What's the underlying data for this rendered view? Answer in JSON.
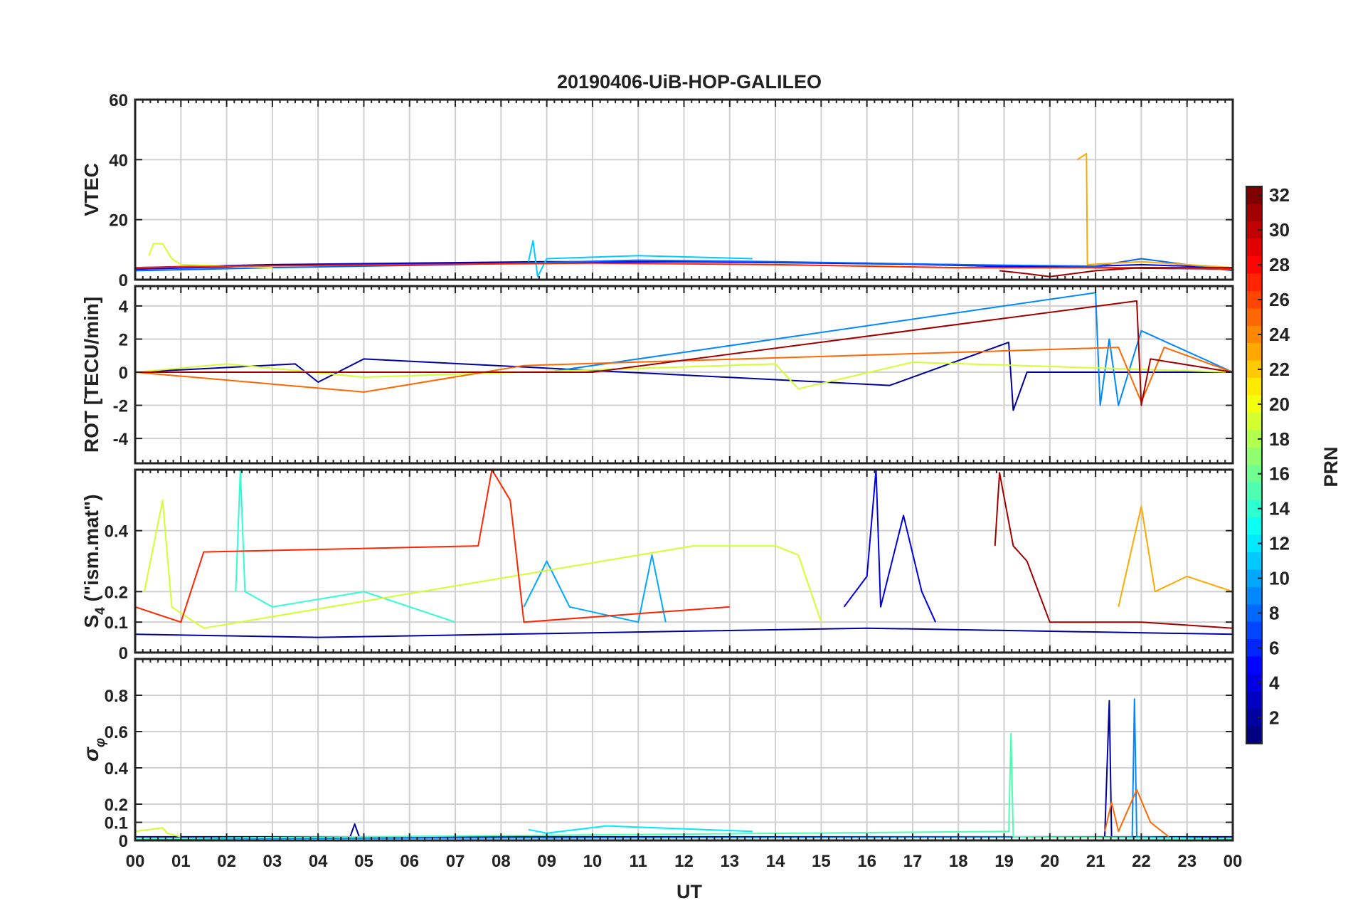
{
  "title": "20190406-UiB-HOP-GALILEO",
  "xlabel": "UT",
  "x_ticks": [
    "00",
    "01",
    "02",
    "03",
    "04",
    "05",
    "06",
    "07",
    "08",
    "09",
    "10",
    "11",
    "12",
    "13",
    "14",
    "15",
    "16",
    "17",
    "18",
    "19",
    "20",
    "21",
    "22",
    "23",
    "00"
  ],
  "colorbar": {
    "label": "PRN",
    "range": [
      1,
      32
    ],
    "ticks": [
      2,
      4,
      6,
      8,
      10,
      12,
      14,
      16,
      18,
      20,
      22,
      24,
      26,
      28,
      30,
      32
    ],
    "colormap": "jet"
  },
  "chart_data": [
    {
      "type": "line",
      "ylabel": "VTEC",
      "ylim": [
        0,
        60
      ],
      "y_ticks": [
        0,
        20,
        40,
        60
      ],
      "grid": true,
      "series": [
        {
          "prn": 2,
          "values": [
            [
              0,
              4
            ],
            [
              3,
              5
            ],
            [
              6,
              5.5
            ],
            [
              9,
              6
            ],
            [
              12,
              6
            ],
            [
              15,
              5.5
            ],
            [
              18,
              5
            ],
            [
              21,
              4
            ],
            [
              24,
              3.5
            ]
          ]
        },
        {
          "prn": 5,
          "values": [
            [
              0,
              3.5
            ],
            [
              4,
              5
            ],
            [
              8,
              5.5
            ],
            [
              12,
              6
            ],
            [
              16,
              5.5
            ],
            [
              20,
              4
            ],
            [
              22,
              5
            ],
            [
              24,
              4
            ]
          ]
        },
        {
          "prn": 8,
          "values": [
            [
              0,
              3
            ],
            [
              3,
              4
            ],
            [
              7,
              5
            ],
            [
              11,
              6.5
            ],
            [
              14,
              6
            ],
            [
              18,
              5
            ],
            [
              21,
              4.5
            ],
            [
              22,
              7
            ],
            [
              24,
              3
            ]
          ]
        },
        {
          "prn": 11,
          "values": [
            [
              8.6,
              6
            ],
            [
              8.7,
              13
            ],
            [
              8.8,
              1
            ],
            [
              9,
              7
            ],
            [
              11,
              8
            ],
            [
              13.5,
              7
            ]
          ]
        },
        {
          "prn": 19,
          "values": [
            [
              0.3,
              8
            ],
            [
              0.4,
              12
            ],
            [
              0.6,
              12
            ],
            [
              0.8,
              7
            ],
            [
              1,
              5
            ],
            [
              3,
              4
            ]
          ]
        },
        {
          "prn": 23,
          "values": [
            [
              20.6,
              40
            ],
            [
              20.8,
              42
            ],
            [
              20.82,
              5
            ],
            [
              22,
              6
            ],
            [
              24,
              4
            ]
          ]
        },
        {
          "prn": 27,
          "values": [
            [
              0,
              4
            ],
            [
              2,
              4.5
            ],
            [
              6,
              5
            ],
            [
              10,
              5.5
            ],
            [
              14,
              5
            ],
            [
              18,
              4
            ],
            [
              22,
              4
            ],
            [
              24,
              3.5
            ]
          ]
        },
        {
          "prn": 31,
          "values": [
            [
              18.9,
              3
            ],
            [
              19.5,
              2
            ],
            [
              20,
              1
            ],
            [
              21,
              3
            ],
            [
              22,
              4
            ],
            [
              24,
              4
            ]
          ]
        }
      ]
    },
    {
      "type": "line",
      "ylabel": "ROT [TECU/min]",
      "ylim": [
        -5.5,
        5.2
      ],
      "y_ticks": [
        -4,
        -2,
        0,
        2,
        4
      ],
      "grid": true,
      "series": [
        {
          "prn": 2,
          "values": [
            [
              0,
              0
            ],
            [
              3.5,
              0.5
            ],
            [
              4,
              -0.6
            ],
            [
              5,
              0.8
            ],
            [
              16.5,
              -0.8
            ],
            [
              19.1,
              1.8
            ],
            [
              19.2,
              -2.3
            ],
            [
              19.5,
              0
            ],
            [
              24,
              0
            ]
          ]
        },
        {
          "prn": 9,
          "values": [
            [
              0,
              0
            ],
            [
              9,
              0
            ],
            [
              21,
              4.8
            ],
            [
              21.1,
              -2
            ],
            [
              21.3,
              2
            ],
            [
              21.5,
              -2
            ],
            [
              22,
              2.5
            ],
            [
              24,
              0
            ]
          ]
        },
        {
          "prn": 19,
          "values": [
            [
              0,
              0
            ],
            [
              2,
              0.5
            ],
            [
              5,
              -0.3
            ],
            [
              14,
              0.5
            ],
            [
              14.5,
              -1
            ],
            [
              17,
              0.6
            ],
            [
              24,
              0
            ]
          ]
        },
        {
          "prn": 25,
          "values": [
            [
              0,
              0
            ],
            [
              5,
              -1.2
            ],
            [
              8.5,
              0.4
            ],
            [
              21.5,
              1.5
            ],
            [
              22,
              -1.8
            ],
            [
              22.5,
              1.5
            ],
            [
              24,
              0
            ]
          ]
        },
        {
          "prn": 31,
          "values": [
            [
              0,
              0
            ],
            [
              10,
              0
            ],
            [
              21.9,
              4.3
            ],
            [
              22,
              -2
            ],
            [
              22.2,
              0.8
            ],
            [
              24,
              0
            ]
          ]
        }
      ]
    },
    {
      "type": "line",
      "ylabel": "S4 (\"ism.mat\")",
      "ylabel_main": "S",
      "ylabel_sub": "4",
      "ylabel_rest": " (\"ism.mat\")",
      "ylim": [
        0,
        0.6
      ],
      "y_ticks": [
        0,
        0.1,
        0.2,
        0.4
      ],
      "grid": true,
      "series": [
        {
          "prn": 2,
          "values": [
            [
              0,
              0.06
            ],
            [
              4,
              0.05
            ],
            [
              8,
              0.06
            ],
            [
              12,
              0.07
            ],
            [
              16,
              0.08
            ],
            [
              20,
              0.07
            ],
            [
              24,
              0.06
            ]
          ]
        },
        {
          "prn": 4,
          "values": [
            [
              15.5,
              0.15
            ],
            [
              16,
              0.25
            ],
            [
              16.2,
              0.6
            ],
            [
              16.3,
              0.15
            ],
            [
              16.8,
              0.45
            ],
            [
              17.2,
              0.2
            ],
            [
              17.5,
              0.1
            ]
          ]
        },
        {
          "prn": 10,
          "values": [
            [
              8.5,
              0.15
            ],
            [
              9,
              0.3
            ],
            [
              9.5,
              0.15
            ],
            [
              11,
              0.1
            ],
            [
              11.3,
              0.32
            ],
            [
              11.6,
              0.1
            ]
          ]
        },
        {
          "prn": 14,
          "values": [
            [
              2.2,
              0.2
            ],
            [
              2.3,
              0.6
            ],
            [
              2.4,
              0.2
            ],
            [
              3,
              0.15
            ],
            [
              5,
              0.2
            ],
            [
              7,
              0.1
            ]
          ]
        },
        {
          "prn": 19,
          "values": [
            [
              0.2,
              0.2
            ],
            [
              0.6,
              0.5
            ],
            [
              0.8,
              0.15
            ],
            [
              1.5,
              0.08
            ],
            [
              12.2,
              0.35
            ],
            [
              14,
              0.35
            ],
            [
              14.5,
              0.32
            ],
            [
              15,
              0.1
            ]
          ]
        },
        {
          "prn": 23,
          "values": [
            [
              21.5,
              0.15
            ],
            [
              22,
              0.48
            ],
            [
              22.3,
              0.2
            ],
            [
              23,
              0.25
            ],
            [
              24,
              0.2
            ]
          ]
        },
        {
          "prn": 27,
          "values": [
            [
              0,
              0.15
            ],
            [
              1,
              0.1
            ],
            [
              1.5,
              0.33
            ],
            [
              7.5,
              0.35
            ],
            [
              7.8,
              0.6
            ],
            [
              8.2,
              0.5
            ],
            [
              8.5,
              0.1
            ],
            [
              13,
              0.15
            ]
          ]
        },
        {
          "prn": 31,
          "values": [
            [
              18.8,
              0.35
            ],
            [
              18.9,
              0.59
            ],
            [
              19.2,
              0.35
            ],
            [
              19.5,
              0.3
            ],
            [
              20,
              0.1
            ],
            [
              22,
              0.1
            ],
            [
              24,
              0.08
            ]
          ]
        }
      ]
    },
    {
      "type": "line",
      "ylabel": "σφ",
      "ylabel_main": "σ",
      "ylabel_sub": "φ",
      "ylim": [
        0,
        1
      ],
      "y_ticks": [
        0,
        0.1,
        0.2,
        0.4,
        0.6,
        0.8
      ],
      "grid": true,
      "series": [
        {
          "prn": 2,
          "values": [
            [
              0,
              0.02
            ],
            [
              4.7,
              0.02
            ],
            [
              4.8,
              0.09
            ],
            [
              4.9,
              0.02
            ],
            [
              21.2,
              0.02
            ],
            [
              21.3,
              0.77
            ],
            [
              21.35,
              0.02
            ],
            [
              24,
              0.02
            ]
          ]
        },
        {
          "prn": 9,
          "values": [
            [
              0,
              0.01
            ],
            [
              21.8,
              0.02
            ],
            [
              21.85,
              0.78
            ],
            [
              21.9,
              0.02
            ],
            [
              24,
              0.01
            ]
          ]
        },
        {
          "prn": 12,
          "values": [
            [
              8.6,
              0.06
            ],
            [
              9,
              0.04
            ],
            [
              10.3,
              0.08
            ],
            [
              13.5,
              0.05
            ]
          ]
        },
        {
          "prn": 15,
          "values": [
            [
              0,
              0.01
            ],
            [
              19.1,
              0.05
            ],
            [
              19.15,
              0.59
            ],
            [
              19.2,
              0.02
            ],
            [
              24,
              0.01
            ]
          ]
        },
        {
          "prn": 19,
          "values": [
            [
              0,
              0.05
            ],
            [
              0.6,
              0.07
            ],
            [
              0.7,
              0.04
            ],
            [
              1,
              0.02
            ]
          ]
        },
        {
          "prn": 25,
          "values": [
            [
              21.2,
              0.05
            ],
            [
              21.35,
              0.21
            ],
            [
              21.5,
              0.05
            ],
            [
              21.9,
              0.28
            ],
            [
              22.2,
              0.1
            ],
            [
              22.6,
              0.02
            ]
          ]
        }
      ]
    }
  ]
}
